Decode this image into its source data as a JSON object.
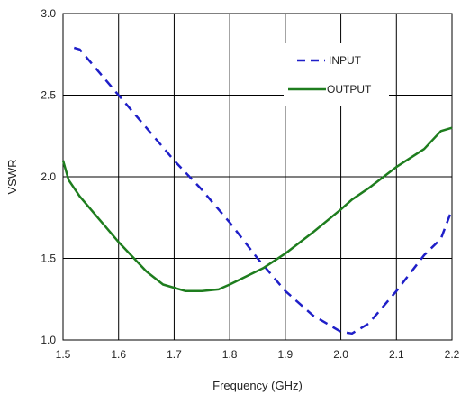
{
  "chart_data": {
    "type": "line",
    "title": "",
    "xlabel": "Frequency (GHz)",
    "ylabel": "VSWR",
    "xlim": [
      1.5,
      2.2
    ],
    "ylim": [
      1.0,
      3.0
    ],
    "xticks": [
      "1.5",
      "1.6",
      "1.7",
      "1.8",
      "1.9",
      "2.0",
      "2.1",
      "2.2"
    ],
    "yticks": [
      "1.0",
      "1.5",
      "2.0",
      "2.5",
      "3.0"
    ],
    "grid": true,
    "legend_position": "top-right",
    "series": [
      {
        "name": "INPUT",
        "color": "#1f1fc8",
        "style": "dashed",
        "x": [
          1.52,
          1.53,
          1.55,
          1.6,
          1.65,
          1.7,
          1.75,
          1.8,
          1.85,
          1.9,
          1.95,
          2.0,
          2.02,
          2.05,
          2.1,
          2.15,
          2.18,
          2.2
        ],
        "y": [
          2.79,
          2.78,
          2.7,
          2.5,
          2.3,
          2.1,
          1.92,
          1.72,
          1.5,
          1.3,
          1.15,
          1.05,
          1.04,
          1.1,
          1.3,
          1.52,
          1.62,
          1.8
        ]
      },
      {
        "name": "OUTPUT",
        "color": "#1e7d1e",
        "style": "solid",
        "x": [
          1.5,
          1.51,
          1.53,
          1.56,
          1.6,
          1.65,
          1.68,
          1.72,
          1.75,
          1.78,
          1.8,
          1.83,
          1.86,
          1.9,
          1.95,
          2.0,
          2.02,
          2.05,
          2.1,
          2.15,
          2.18,
          2.2
        ],
        "y": [
          2.1,
          1.98,
          1.88,
          1.76,
          1.6,
          1.42,
          1.34,
          1.3,
          1.3,
          1.31,
          1.34,
          1.39,
          1.44,
          1.53,
          1.66,
          1.8,
          1.86,
          1.93,
          2.06,
          2.17,
          2.28,
          2.3
        ]
      }
    ]
  }
}
